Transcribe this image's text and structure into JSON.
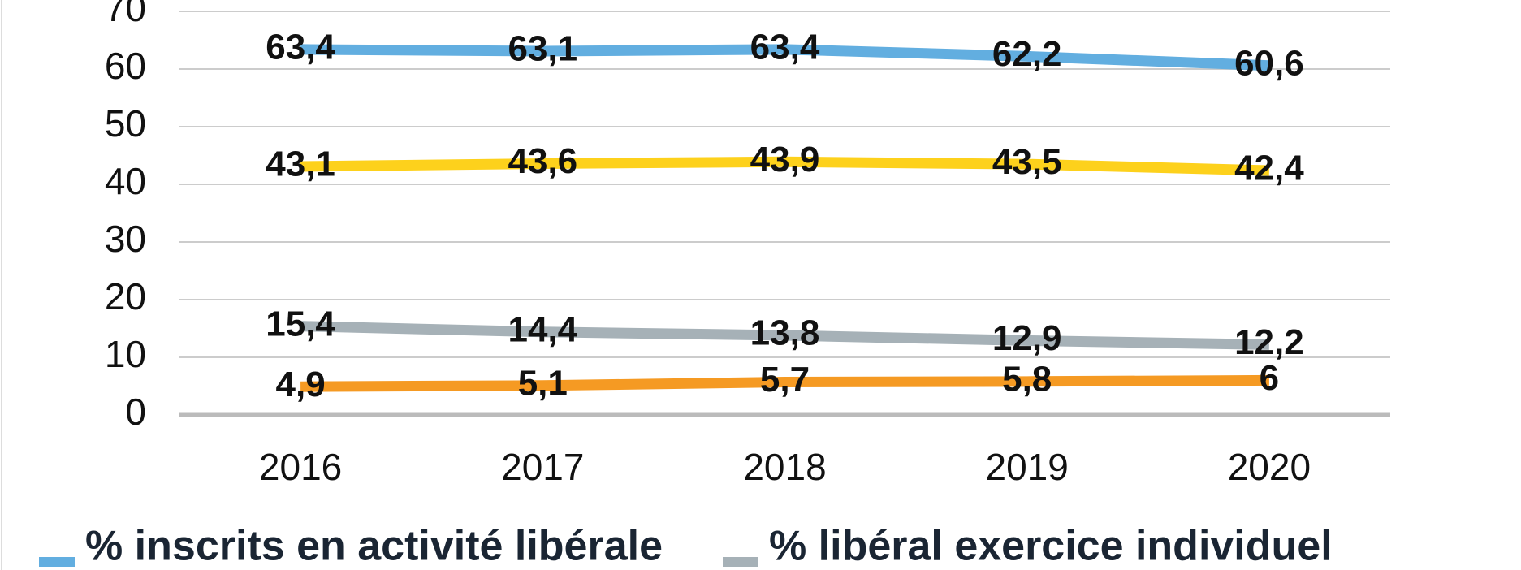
{
  "chart_data": {
    "type": "line",
    "categories": [
      "2016",
      "2017",
      "2018",
      "2019",
      "2020"
    ],
    "series": [
      {
        "name": "% inscrits en activité libérale",
        "color": "#62aee0",
        "values": [
          63.4,
          63.1,
          63.4,
          62.2,
          60.6
        ],
        "value_labels": [
          "63,4",
          "63,1",
          "63,4",
          "62,2",
          "60,6"
        ]
      },
      {
        "color": "#fdd11c",
        "values": [
          43.1,
          43.6,
          43.9,
          43.5,
          42.4
        ],
        "value_labels": [
          "43,1",
          "43,6",
          "43,9",
          "43,5",
          "42,4"
        ]
      },
      {
        "name": "% libéral exercice individuel",
        "color": "#a6b1b7",
        "values": [
          15.4,
          14.4,
          13.8,
          12.9,
          12.2
        ],
        "value_labels": [
          "15,4",
          "14,4",
          "13,8",
          "12,9",
          "12,2"
        ]
      },
      {
        "color": "#f59a23",
        "values": [
          4.9,
          5.1,
          5.7,
          5.8,
          6
        ],
        "value_labels": [
          "4,9",
          "5,1",
          "5,7",
          "5,8",
          "6"
        ]
      }
    ],
    "ylim": [
      0,
      70
    ],
    "yticks": [
      0,
      10,
      20,
      30,
      40,
      50,
      60,
      70
    ],
    "grid": true
  }
}
